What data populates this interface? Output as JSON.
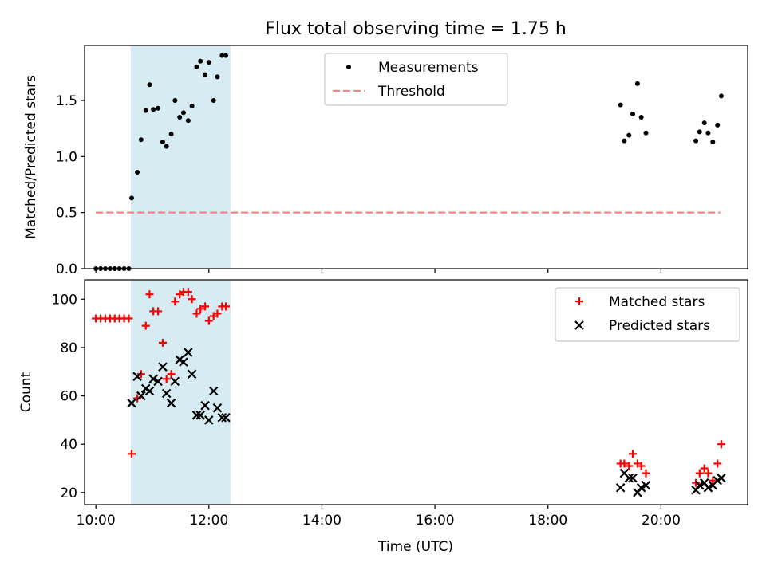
{
  "figure": {
    "title": "Flux total observing time = 1.75 h",
    "xlabel": "Time (UTC)"
  },
  "chart_data": [
    {
      "type": "scatter",
      "ylabel": "Matched/Predicted stars",
      "xlim": [
        "09:48",
        "21:32"
      ],
      "ylim": [
        0,
        1.99
      ],
      "yticks": [
        0.0,
        0.5,
        1.0,
        1.5
      ],
      "ytick_labels": [
        "0.0",
        "0.5",
        "1.0",
        "1.5"
      ],
      "xticks": [
        "10:00",
        "12:00",
        "14:00",
        "16:00",
        "18:00",
        "20:00"
      ],
      "xtick_labels_visible": false,
      "shaded_span": {
        "x0": "10:37",
        "x1": "12:23",
        "color": "#add8e6"
      },
      "legend": {
        "placement": "upper center"
      },
      "series": [
        {
          "name": "Measurements",
          "kind": "scatter",
          "marker": "dot",
          "color": "#000000",
          "x": [
            "10:00",
            "10:05",
            "10:10",
            "10:15",
            "10:20",
            "10:25",
            "10:30",
            "10:35",
            "10:38",
            "10:44",
            "10:48",
            "10:53",
            "10:57",
            "11:01",
            "11:06",
            "11:11",
            "11:15",
            "11:20",
            "11:24",
            "11:29",
            "11:33",
            "11:38",
            "11:42",
            "11:47",
            "11:51",
            "11:56",
            "12:00",
            "12:05",
            "12:09",
            "12:14",
            "12:18",
            "19:17",
            "19:21",
            "19:26",
            "19:30",
            "19:35",
            "19:39",
            "19:44",
            "20:37",
            "20:41",
            "20:46",
            "20:50",
            "20:55",
            "21:00",
            "21:04"
          ],
          "y": [
            0,
            0,
            0,
            0,
            0,
            0,
            0,
            0,
            0.63,
            0.86,
            1.15,
            1.41,
            1.64,
            1.42,
            1.43,
            1.13,
            1.09,
            1.2,
            1.5,
            1.35,
            1.39,
            1.32,
            1.45,
            1.8,
            1.85,
            1.73,
            1.84,
            1.5,
            1.71,
            1.9,
            1.9,
            1.46,
            1.14,
            1.19,
            1.38,
            1.65,
            1.35,
            1.21,
            1.14,
            1.22,
            1.3,
            1.21,
            1.13,
            1.28,
            1.54
          ]
        },
        {
          "name": "Threshold",
          "kind": "line",
          "dash": true,
          "color": "#ff8080",
          "x": [
            "10:00",
            "21:03"
          ],
          "y": [
            0.5,
            0.5
          ]
        }
      ]
    },
    {
      "type": "scatter",
      "ylabel": "Count",
      "xlim": [
        "09:48",
        "21:32"
      ],
      "ylim": [
        15,
        108
      ],
      "yticks": [
        20,
        40,
        60,
        80,
        100
      ],
      "ytick_labels": [
        "20",
        "40",
        "60",
        "80",
        "100"
      ],
      "xticks": [
        "10:00",
        "12:00",
        "14:00",
        "16:00",
        "18:00",
        "20:00"
      ],
      "xtick_labels": [
        "10:00",
        "12:00",
        "14:00",
        "16:00",
        "18:00",
        "20:00"
      ],
      "shaded_span": {
        "x0": "10:37",
        "x1": "12:23",
        "color": "#add8e6"
      },
      "legend": {
        "placement": "upper right"
      },
      "series": [
        {
          "name": "Matched stars",
          "kind": "scatter",
          "marker": "plus",
          "color": "#ff0000",
          "x": [
            "10:00",
            "10:05",
            "10:10",
            "10:15",
            "10:20",
            "10:25",
            "10:30",
            "10:35",
            "10:38",
            "10:44",
            "10:48",
            "10:53",
            "10:57",
            "11:01",
            "11:06",
            "11:11",
            "11:15",
            "11:20",
            "11:24",
            "11:29",
            "11:33",
            "11:38",
            "11:42",
            "11:47",
            "11:51",
            "11:56",
            "12:00",
            "12:05",
            "12:09",
            "12:14",
            "12:18",
            "19:17",
            "19:21",
            "19:26",
            "19:30",
            "19:35",
            "19:39",
            "19:44",
            "20:37",
            "20:41",
            "20:46",
            "20:50",
            "20:55",
            "21:00",
            "21:04"
          ],
          "y": [
            92,
            92,
            92,
            92,
            92,
            92,
            92,
            92,
            36,
            59,
            69,
            89,
            102,
            95,
            95,
            82,
            67,
            69,
            99,
            102,
            103,
            103,
            100,
            94,
            96,
            97,
            91,
            93,
            94,
            97,
            97,
            32,
            32,
            31,
            36,
            32,
            31,
            28,
            24,
            28,
            30,
            28,
            25,
            32,
            40
          ]
        },
        {
          "name": "Predicted stars",
          "kind": "scatter",
          "marker": "x",
          "color": "#000000",
          "x": [
            "10:38",
            "10:44",
            "10:48",
            "10:53",
            "10:57",
            "11:01",
            "11:06",
            "11:11",
            "11:15",
            "11:20",
            "11:24",
            "11:29",
            "11:33",
            "11:38",
            "11:42",
            "11:47",
            "11:51",
            "11:56",
            "12:00",
            "12:05",
            "12:09",
            "12:14",
            "12:18",
            "19:17",
            "19:21",
            "19:26",
            "19:30",
            "19:35",
            "19:39",
            "19:44",
            "20:37",
            "20:41",
            "20:46",
            "20:50",
            "20:55",
            "21:00",
            "21:04"
          ],
          "y": [
            57,
            68,
            60,
            63,
            62,
            67,
            66,
            72,
            61,
            57,
            66,
            75,
            74,
            78,
            69,
            52,
            52,
            56,
            50,
            62,
            55,
            51,
            51,
            22,
            28,
            26,
            26,
            20,
            22,
            23,
            21,
            23,
            24,
            22,
            23,
            25,
            26
          ]
        }
      ]
    }
  ]
}
